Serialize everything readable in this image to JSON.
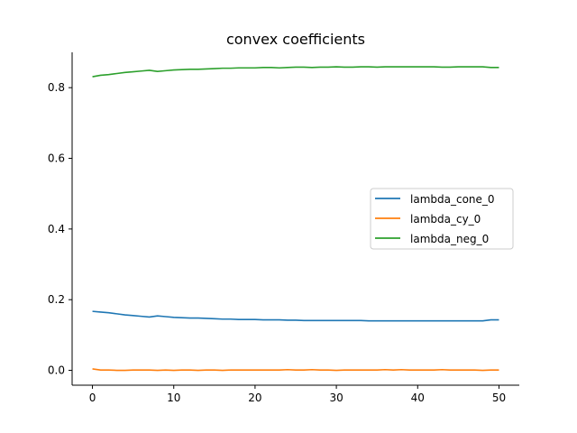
{
  "chart_data": {
    "type": "line",
    "title": "convex coefficients",
    "xlabel": "",
    "ylabel": "",
    "xlim": [
      -2.5,
      52.5
    ],
    "ylim": [
      -0.042,
      0.9
    ],
    "xticks": [
      0,
      10,
      20,
      30,
      40,
      50
    ],
    "yticks": [
      0.0,
      0.2,
      0.4,
      0.6,
      0.8
    ],
    "xtick_labels": [
      "0",
      "10",
      "20",
      "30",
      "40",
      "50"
    ],
    "ytick_labels": [
      "0.0",
      "0.2",
      "0.4",
      "0.6",
      "0.8"
    ],
    "grid": false,
    "legend": "center-right",
    "x": [
      0,
      1,
      2,
      3,
      4,
      5,
      6,
      7,
      8,
      9,
      10,
      11,
      12,
      13,
      14,
      15,
      16,
      17,
      18,
      19,
      20,
      21,
      22,
      23,
      24,
      25,
      26,
      27,
      28,
      29,
      30,
      31,
      32,
      33,
      34,
      35,
      36,
      37,
      38,
      39,
      40,
      41,
      42,
      43,
      44,
      45,
      46,
      47,
      48,
      49,
      50
    ],
    "series": [
      {
        "name": "lambda_cone_0",
        "color": "#1f77b4",
        "values": [
          0.167,
          0.165,
          0.163,
          0.16,
          0.157,
          0.155,
          0.153,
          0.151,
          0.154,
          0.152,
          0.15,
          0.149,
          0.148,
          0.148,
          0.147,
          0.146,
          0.145,
          0.145,
          0.144,
          0.144,
          0.144,
          0.143,
          0.143,
          0.143,
          0.142,
          0.142,
          0.141,
          0.141,
          0.141,
          0.141,
          0.141,
          0.141,
          0.141,
          0.141,
          0.14,
          0.14,
          0.14,
          0.14,
          0.14,
          0.14,
          0.14,
          0.14,
          0.14,
          0.14,
          0.14,
          0.14,
          0.14,
          0.14,
          0.14,
          0.143,
          0.143
        ]
      },
      {
        "name": "lambda_cy_0",
        "color": "#ff7f0e",
        "values": [
          0.004,
          0.001,
          0.001,
          0.0,
          0.0,
          0.001,
          0.001,
          0.001,
          0.0,
          0.001,
          0.0,
          0.001,
          0.001,
          0.0,
          0.001,
          0.001,
          0.0,
          0.001,
          0.001,
          0.001,
          0.001,
          0.001,
          0.001,
          0.001,
          0.002,
          0.001,
          0.001,
          0.002,
          0.001,
          0.001,
          0.0,
          0.001,
          0.001,
          0.001,
          0.001,
          0.001,
          0.002,
          0.001,
          0.002,
          0.001,
          0.001,
          0.001,
          0.001,
          0.002,
          0.001,
          0.001,
          0.001,
          0.001,
          0.0,
          0.001,
          0.001
        ]
      },
      {
        "name": "lambda_neg_0",
        "color": "#2ca02c",
        "values": [
          0.831,
          0.835,
          0.837,
          0.84,
          0.843,
          0.845,
          0.847,
          0.849,
          0.846,
          0.848,
          0.85,
          0.851,
          0.852,
          0.852,
          0.853,
          0.854,
          0.855,
          0.855,
          0.856,
          0.856,
          0.856,
          0.857,
          0.857,
          0.856,
          0.857,
          0.858,
          0.858,
          0.857,
          0.858,
          0.858,
          0.859,
          0.858,
          0.858,
          0.859,
          0.859,
          0.858,
          0.859,
          0.859,
          0.859,
          0.859,
          0.859,
          0.859,
          0.859,
          0.858,
          0.858,
          0.859,
          0.859,
          0.859,
          0.859,
          0.857,
          0.857
        ]
      }
    ]
  }
}
